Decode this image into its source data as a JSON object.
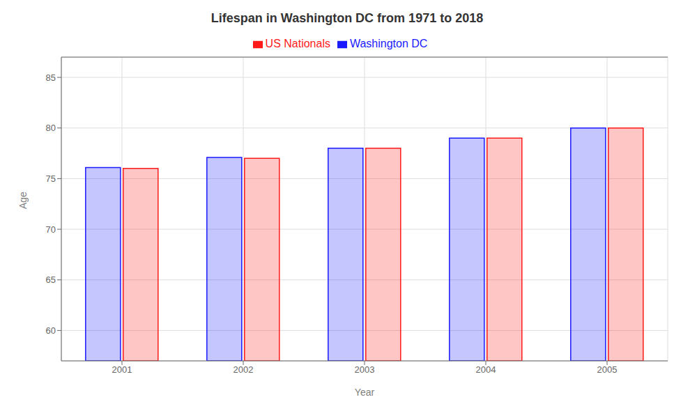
{
  "chart_data": {
    "type": "bar",
    "title": "Lifespan in Washington DC from 1971 to 2018",
    "x_label": "Year",
    "y_label": "Age",
    "categories": [
      "2001",
      "2002",
      "2003",
      "2004",
      "2005"
    ],
    "series": [
      {
        "name": "Washington DC",
        "color": "#1a1aff",
        "values": [
          76.1,
          77.1,
          78.0,
          79.0,
          80.0
        ]
      },
      {
        "name": "US Nationals",
        "color": "#ff1a1a",
        "values": [
          76.0,
          77.0,
          78.0,
          79.0,
          80.0
        ]
      }
    ],
    "ylim": [
      57,
      87
    ],
    "yticks": [
      60,
      65,
      70,
      75,
      80,
      85
    ],
    "grid": true,
    "legend": "top"
  }
}
